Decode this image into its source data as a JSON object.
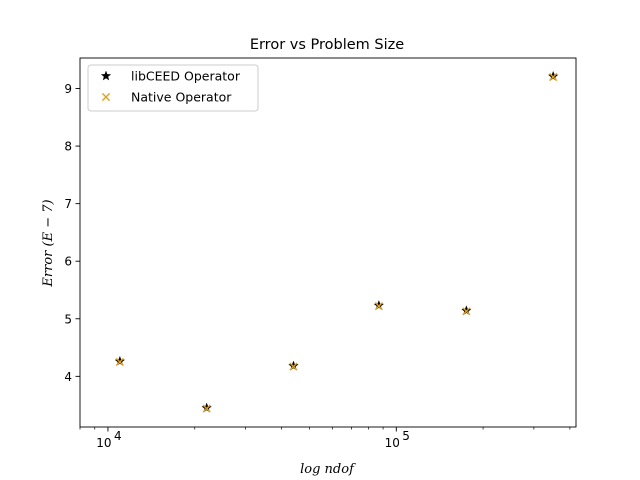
{
  "chart_data": {
    "type": "scatter",
    "title": "Error vs Problem Size",
    "xlabel": "log ndof",
    "ylabel": "Error (E − 7)",
    "xscale": "log",
    "xlim": [
      8000,
      420000
    ],
    "ylim": [
      3.12,
      9.53
    ],
    "x_ticks": [
      {
        "value": 10000,
        "base": "10",
        "exp": "4"
      },
      {
        "value": 100000,
        "base": "10",
        "exp": "5"
      }
    ],
    "y_ticks": [
      4,
      5,
      6,
      7,
      8,
      9
    ],
    "grid": false,
    "legend": {
      "position": "top-left"
    },
    "series": [
      {
        "name": "libCEED Operator",
        "marker": "star",
        "color": "#000000",
        "x": [
          11000,
          22000,
          44000,
          87000,
          175000,
          350000
        ],
        "y": [
          4.26,
          3.45,
          4.18,
          5.23,
          5.14,
          9.21
        ]
      },
      {
        "name": "Native Operator",
        "marker": "x",
        "color": "#e0a020",
        "x": [
          11000,
          22000,
          44000,
          87000,
          175000,
          350000
        ],
        "y": [
          4.25,
          3.44,
          4.17,
          5.22,
          5.13,
          9.2
        ]
      }
    ]
  }
}
